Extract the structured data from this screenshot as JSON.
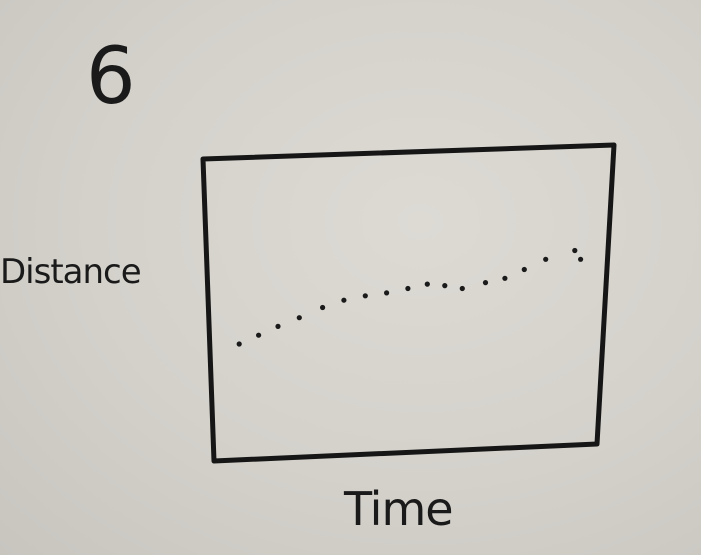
{
  "figure": {
    "number": "6"
  },
  "chart_data": {
    "type": "scatter",
    "title": "",
    "xlabel": "Time",
    "ylabel": "Distance",
    "xlim": [
      0,
      10
    ],
    "ylim": [
      0,
      10
    ],
    "grid": false,
    "legend": "none",
    "tick_labels": false,
    "series": [
      {
        "color": "#1a1a1a",
        "points": [
          {
            "x": 0.7,
            "y": 3.7
          },
          {
            "x": 1.2,
            "y": 4.0
          },
          {
            "x": 1.7,
            "y": 4.3
          },
          {
            "x": 2.25,
            "y": 4.6
          },
          {
            "x": 2.85,
            "y": 4.95
          },
          {
            "x": 3.4,
            "y": 5.2
          },
          {
            "x": 3.95,
            "y": 5.35
          },
          {
            "x": 4.5,
            "y": 5.45
          },
          {
            "x": 5.05,
            "y": 5.6
          },
          {
            "x": 5.55,
            "y": 5.75
          },
          {
            "x": 6.0,
            "y": 5.7
          },
          {
            "x": 6.45,
            "y": 5.6
          },
          {
            "x": 7.05,
            "y": 5.8
          },
          {
            "x": 7.55,
            "y": 5.95
          },
          {
            "x": 8.05,
            "y": 6.25
          },
          {
            "x": 8.6,
            "y": 6.6
          },
          {
            "x": 9.35,
            "y": 6.9
          },
          {
            "x": 9.5,
            "y": 6.6
          }
        ]
      }
    ]
  }
}
